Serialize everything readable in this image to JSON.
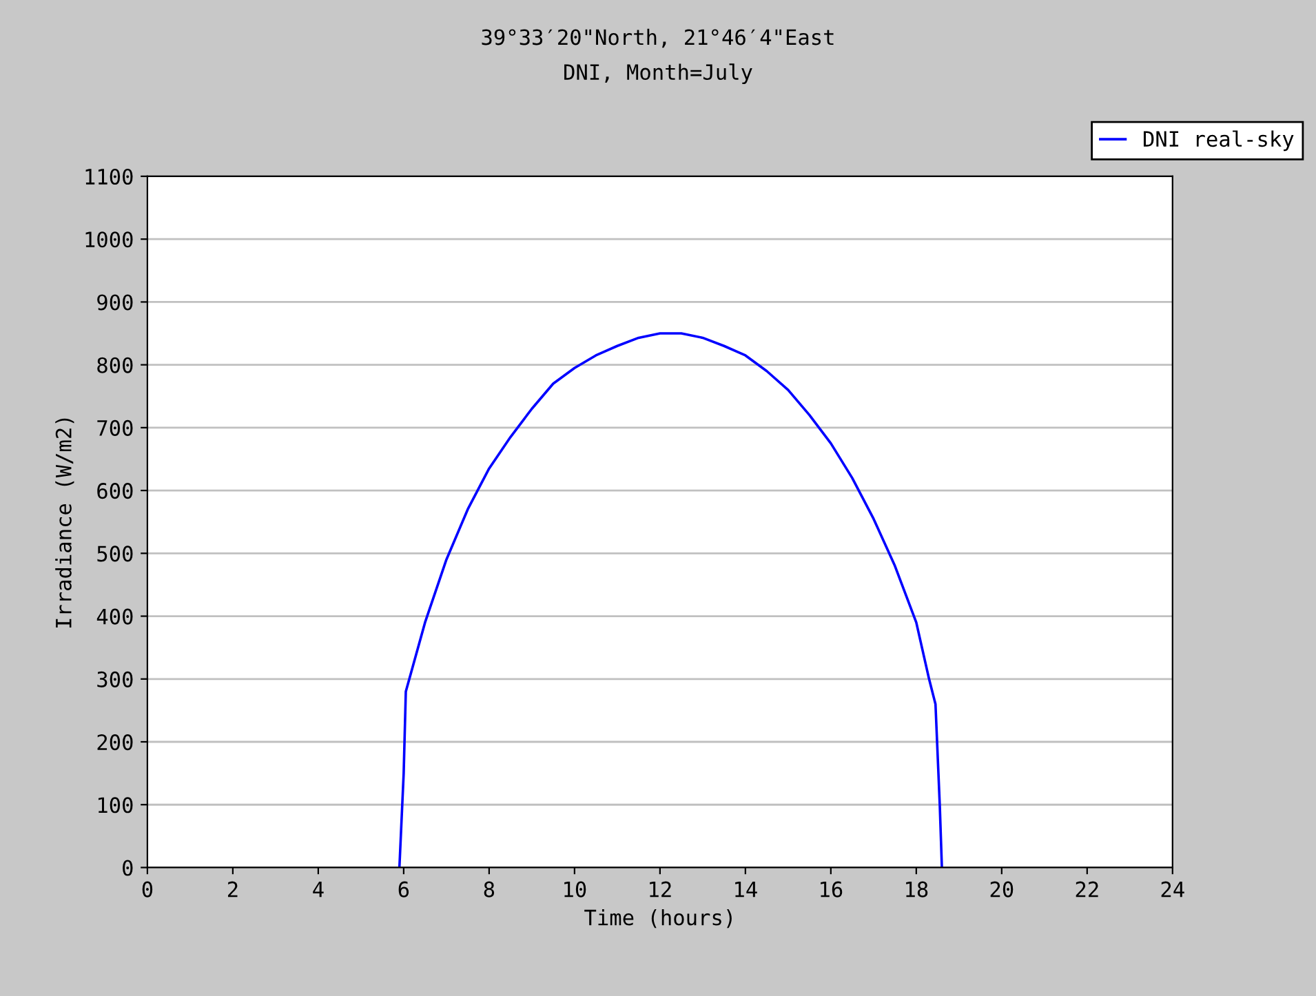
{
  "chart_data": {
    "type": "line",
    "title": "39°33′20\"North, 21°46′4\"East",
    "subtitle": "DNI, Month=July",
    "xlabel": "Time (hours)",
    "ylabel": "Irradiance (W/m2)",
    "xlim": [
      0,
      24
    ],
    "xticks": [
      0,
      2,
      4,
      6,
      8,
      10,
      12,
      14,
      16,
      18,
      20,
      22,
      24
    ],
    "ylim": [
      0,
      1100
    ],
    "yticks": [
      0,
      100,
      200,
      300,
      400,
      500,
      600,
      700,
      800,
      900,
      1000,
      1100
    ],
    "grid": "y",
    "legend": "top right",
    "marker": "none",
    "line_style": "solid",
    "series": [
      {
        "name": "DNI real-sky",
        "color": "#0000ff",
        "x": [
          5.9,
          6.0,
          6.05,
          6.5,
          7,
          7.5,
          8,
          8.5,
          9,
          9.5,
          10,
          10.5,
          11,
          11.5,
          12,
          12.5,
          13,
          13.5,
          14,
          14.5,
          15,
          15.5,
          16,
          16.5,
          17,
          17.5,
          18,
          18.3,
          18.45,
          18.55,
          18.6
        ],
        "values": [
          0,
          150,
          280,
          390,
          490,
          570,
          635,
          685,
          730,
          770,
          795,
          815,
          830,
          843,
          850,
          850,
          843,
          830,
          815,
          790,
          760,
          720,
          675,
          620,
          555,
          480,
          390,
          300,
          260,
          100,
          0
        ]
      }
    ]
  }
}
